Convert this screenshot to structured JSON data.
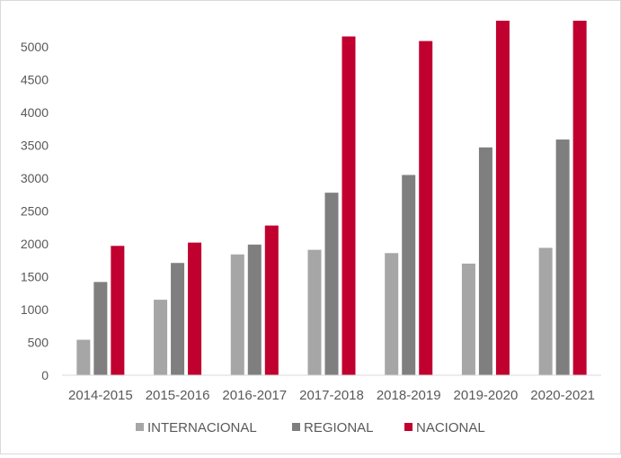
{
  "chart_data": {
    "type": "bar",
    "title": "",
    "xlabel": "",
    "ylabel": "",
    "categories": [
      "2014-2015",
      "2015-2016",
      "2016-2017",
      "2017-2018",
      "2018-2019",
      "2019-2020",
      "2020-2021"
    ],
    "ylim": [
      0,
      5400
    ],
    "yticks": [
      0,
      500,
      1000,
      1500,
      2000,
      2500,
      3000,
      3500,
      4000,
      4500,
      5000
    ],
    "grid": false,
    "legend_position": "bottom",
    "series": [
      {
        "name": "INTERNACIONAL",
        "color": "#a6a6a6",
        "values": [
          540,
          1150,
          1840,
          1910,
          1860,
          1700,
          1940
        ]
      },
      {
        "name": "REGIONAL",
        "color": "#7f7f7f",
        "values": [
          1420,
          1710,
          1990,
          2780,
          3050,
          3470,
          3590
        ]
      },
      {
        "name": "NACIONAL",
        "color": "#c0002f",
        "values": [
          1970,
          2020,
          2280,
          5160,
          5090,
          5400,
          5400
        ]
      }
    ]
  }
}
